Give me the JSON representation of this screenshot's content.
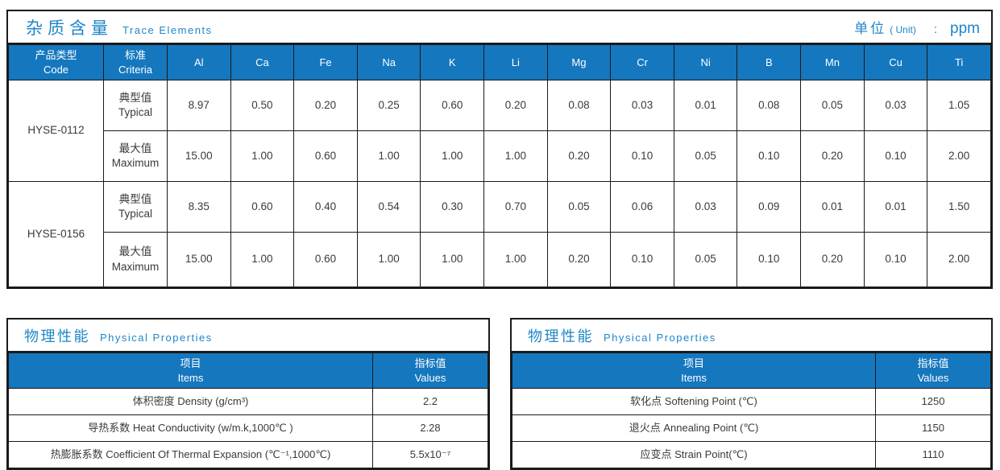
{
  "colors": {
    "header_blue": "#1577be",
    "title_blue": "#1e86c8",
    "border_dark": "#1a1a1a"
  },
  "trace_table": {
    "title_zh": "杂质含量",
    "title_en": "Trace Elements",
    "unit_zh": "单位",
    "unit_en": "( Unit)",
    "unit_colon": ":",
    "unit_value": "ppm",
    "col_code_zh": "产品类型",
    "col_code_en": "Code",
    "col_criteria_zh": "标准",
    "col_criteria_en": "Criteria",
    "elements": [
      "Al",
      "Ca",
      "Fe",
      "Na",
      "K",
      "Li",
      "Mg",
      "Cr",
      "Ni",
      "B",
      "Mn",
      "Cu",
      "Ti"
    ],
    "products": [
      {
        "code": "HYSE-0112",
        "rows": [
          {
            "criteria_zh": "典型值",
            "criteria_en": "Typical",
            "values": [
              "8.97",
              "0.50",
              "0.20",
              "0.25",
              "0.60",
              "0.20",
              "0.08",
              "0.03",
              "0.01",
              "0.08",
              "0.05",
              "0.03",
              "1.05"
            ]
          },
          {
            "criteria_zh": "最大值",
            "criteria_en": "Maximum",
            "values": [
              "15.00",
              "1.00",
              "0.60",
              "1.00",
              "1.00",
              "1.00",
              "0.20",
              "0.10",
              "0.05",
              "0.10",
              "0.20",
              "0.10",
              "2.00"
            ]
          }
        ]
      },
      {
        "code": "HYSE-0156",
        "rows": [
          {
            "criteria_zh": "典型值",
            "criteria_en": "Typical",
            "values": [
              "8.35",
              "0.60",
              "0.40",
              "0.54",
              "0.30",
              "0.70",
              "0.05",
              "0.06",
              "0.03",
              "0.09",
              "0.01",
              "0.01",
              "1.50"
            ]
          },
          {
            "criteria_zh": "最大值",
            "criteria_en": "Maximum",
            "values": [
              "15.00",
              "1.00",
              "0.60",
              "1.00",
              "1.00",
              "1.00",
              "0.20",
              "0.10",
              "0.05",
              "0.10",
              "0.20",
              "0.10",
              "2.00"
            ]
          }
        ]
      }
    ]
  },
  "physical_tables": [
    {
      "title_zh": "物理性能",
      "title_en": "Physical Properties",
      "col_items_zh": "项目",
      "col_items_en": "Items",
      "col_values_zh": "指标值",
      "col_values_en": "Values",
      "rows": [
        {
          "item": "体积密度 Density (g/cm³)",
          "value": "2.2"
        },
        {
          "item": "导热系数 Heat Conductivity (w/m.k,1000℃ )",
          "value": "2.28"
        },
        {
          "item": "热膨胀系数 Coefficient Of Thermal Expansion (℃⁻¹,1000℃)",
          "value": "5.5x10⁻⁷"
        }
      ]
    },
    {
      "title_zh": "物理性能",
      "title_en": "Physical Properties",
      "col_items_zh": "项目",
      "col_items_en": "Items",
      "col_values_zh": "指标值",
      "col_values_en": "Values",
      "rows": [
        {
          "item": "软化点 Softening Point (℃)",
          "value": "1250"
        },
        {
          "item": "退火点 Annealing Point (℃)",
          "value": "1150"
        },
        {
          "item": "应变点 Strain Point(℃)",
          "value": "1110"
        }
      ]
    }
  ]
}
